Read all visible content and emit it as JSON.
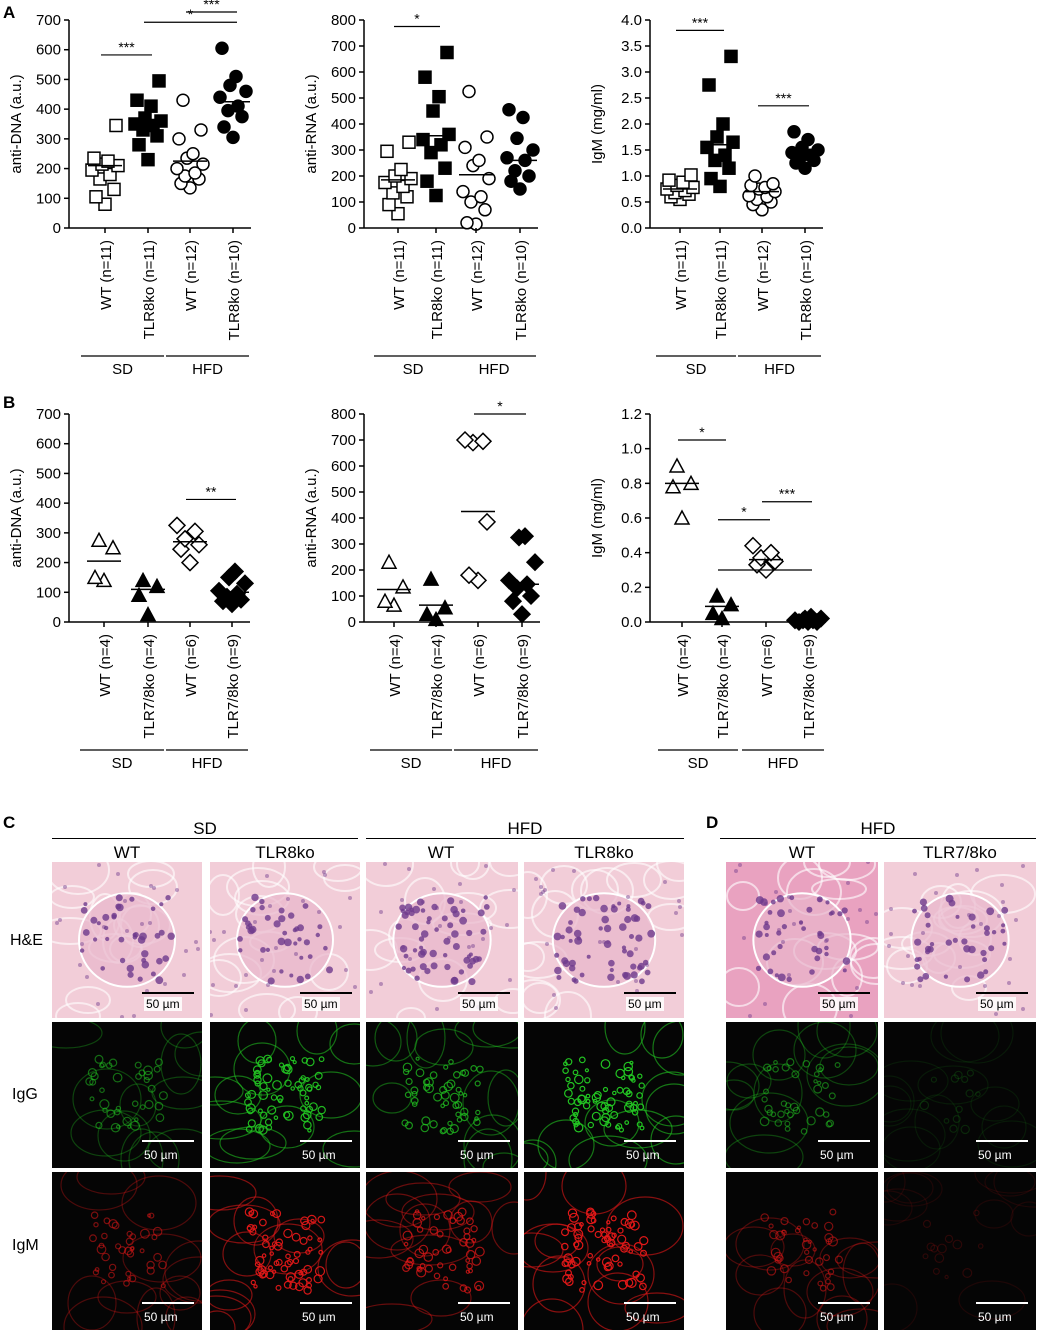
{
  "panels": {
    "A": "A",
    "B": "B",
    "C": "C",
    "D": "D"
  },
  "chart_data": [
    {
      "id": "A1",
      "type": "scatter",
      "ylabel": "anti-DNA (a.u.)",
      "ylim": [
        0,
        700
      ],
      "yticks": [
        0,
        100,
        200,
        300,
        400,
        500,
        600,
        700
      ],
      "groups": [
        {
          "label": "WT (n=11)",
          "diet": "SD",
          "marker": "square-open",
          "mean": 210,
          "values": [
            80,
            105,
            130,
            165,
            180,
            195,
            210,
            215,
            225,
            235,
            345
          ]
        },
        {
          "label": "TLR8ko (n=11)",
          "diet": "SD",
          "marker": "square-filled",
          "mean": 355,
          "values": [
            230,
            280,
            310,
            330,
            345,
            350,
            360,
            370,
            410,
            430,
            495
          ]
        },
        {
          "label": "WT (n=12)",
          "diet": "HFD",
          "marker": "circle-open",
          "mean": 225,
          "values": [
            135,
            150,
            165,
            175,
            185,
            200,
            215,
            235,
            250,
            300,
            330,
            430
          ]
        },
        {
          "label": "TLR8ko (n=10)",
          "diet": "HFD",
          "marker": "circle-filled",
          "mean": 425,
          "values": [
            305,
            340,
            375,
            395,
            410,
            440,
            460,
            480,
            510,
            605
          ]
        }
      ],
      "significance": [
        {
          "from": 0,
          "to": 1,
          "text": "***"
        },
        {
          "from": 1,
          "to": 3,
          "text": "*"
        },
        {
          "from": 2,
          "to": 3,
          "text": "***"
        }
      ],
      "diet_labels": [
        "SD",
        "HFD"
      ]
    },
    {
      "id": "A2",
      "type": "scatter",
      "ylabel": "anti-RNA (a.u.)",
      "ylim": [
        0,
        800
      ],
      "yticks": [
        0,
        100,
        200,
        300,
        400,
        500,
        600,
        700,
        800
      ],
      "groups": [
        {
          "label": "WT (n=11)",
          "diet": "SD",
          "marker": "square-open",
          "mean": 185,
          "values": [
            55,
            90,
            120,
            135,
            160,
            175,
            190,
            200,
            225,
            295,
            330
          ]
        },
        {
          "label": "TLR8ko (n=11)",
          "diet": "SD",
          "marker": "square-filled",
          "mean": 355,
          "values": [
            125,
            180,
            230,
            290,
            320,
            340,
            360,
            450,
            505,
            580,
            675
          ]
        },
        {
          "label": "WT (n=12)",
          "diet": "HFD",
          "marker": "circle-open",
          "mean": 205,
          "values": [
            15,
            20,
            70,
            100,
            120,
            140,
            190,
            240,
            260,
            310,
            350,
            525
          ]
        },
        {
          "label": "TLR8ko (n=10)",
          "diet": "HFD",
          "marker": "circle-filled",
          "mean": 260,
          "values": [
            150,
            180,
            200,
            220,
            260,
            270,
            300,
            345,
            425,
            455
          ]
        }
      ],
      "significance": [
        {
          "from": 0,
          "to": 1,
          "text": "*"
        }
      ],
      "diet_labels": [
        "SD",
        "HFD"
      ]
    },
    {
      "id": "A3",
      "type": "scatter",
      "ylabel": "IgM (mg/ml)",
      "ylim": [
        0,
        4.0
      ],
      "yticks": [
        "0.0",
        "0.5",
        "1.0",
        "1.5",
        "2.0",
        "2.5",
        "3.0",
        "3.5",
        "4.0"
      ],
      "groups": [
        {
          "label": "WT (n=11)",
          "diet": "SD",
          "marker": "square-open",
          "mean": 0.75,
          "values": [
            0.55,
            0.6,
            0.65,
            0.68,
            0.72,
            0.75,
            0.78,
            0.82,
            0.88,
            0.92,
            1.02
          ]
        },
        {
          "label": "TLR8ko (n=11)",
          "diet": "SD",
          "marker": "square-filled",
          "mean": 1.6,
          "values": [
            0.8,
            0.95,
            1.15,
            1.3,
            1.4,
            1.55,
            1.65,
            1.75,
            2.0,
            2.75,
            3.3
          ]
        },
        {
          "label": "WT (n=12)",
          "diet": "HFD",
          "marker": "circle-open",
          "mean": 0.7,
          "values": [
            0.35,
            0.45,
            0.5,
            0.55,
            0.6,
            0.62,
            0.7,
            0.75,
            0.78,
            0.82,
            0.85,
            1.0
          ]
        },
        {
          "label": "TLR8ko (n=10)",
          "diet": "HFD",
          "marker": "circle-filled",
          "mean": 1.42,
          "values": [
            1.15,
            1.25,
            1.3,
            1.35,
            1.4,
            1.45,
            1.5,
            1.55,
            1.7,
            1.85
          ]
        }
      ],
      "significance": [
        {
          "from": 0,
          "to": 1,
          "text": "***"
        },
        {
          "from": 2,
          "to": 3,
          "text": "***"
        }
      ],
      "diet_labels": [
        "SD",
        "HFD"
      ]
    },
    {
      "id": "B1",
      "type": "scatter",
      "ylabel": "anti-DNA (a.u.)",
      "ylim": [
        0,
        700
      ],
      "yticks": [
        0,
        100,
        200,
        300,
        400,
        500,
        600,
        700
      ],
      "groups": [
        {
          "label": "WT (n=4)",
          "diet": "SD",
          "marker": "triangle-open",
          "mean": 205,
          "values": [
            140,
            150,
            250,
            275
          ]
        },
        {
          "label": "TLR7/8ko (n=4)",
          "diet": "SD",
          "marker": "triangle-filled",
          "mean": 110,
          "values": [
            25,
            90,
            120,
            140
          ]
        },
        {
          "label": "WT (n=6)",
          "diet": "HFD",
          "marker": "diamond-open",
          "mean": 270,
          "values": [
            200,
            245,
            260,
            280,
            305,
            325
          ]
        },
        {
          "label": "TLR7/8ko (n=9)",
          "diet": "HFD",
          "marker": "diamond-filled",
          "mean": 100,
          "values": [
            60,
            70,
            75,
            85,
            95,
            105,
            130,
            150,
            170
          ]
        }
      ],
      "significance": [
        {
          "from": 2,
          "to": 3,
          "text": "**"
        }
      ],
      "diet_labels": [
        "SD",
        "HFD"
      ]
    },
    {
      "id": "B2",
      "type": "scatter",
      "ylabel": "anti-RNA (a.u.)",
      "ylim": [
        0,
        800
      ],
      "yticks": [
        0,
        100,
        200,
        300,
        400,
        500,
        600,
        700,
        800
      ],
      "groups": [
        {
          "label": "WT (n=4)",
          "diet": "SD",
          "marker": "triangle-open",
          "mean": 125,
          "values": [
            65,
            80,
            135,
            230
          ]
        },
        {
          "label": "TLR7/8ko (n=4)",
          "diet": "SD",
          "marker": "triangle-filled",
          "mean": 65,
          "values": [
            10,
            30,
            55,
            165
          ]
        },
        {
          "label": "WT (n=6)",
          "diet": "HFD",
          "marker": "diamond-open",
          "mean": 425,
          "values": [
            160,
            180,
            385,
            690,
            695,
            700
          ]
        },
        {
          "label": "TLR7/8ko (n=9)",
          "diet": "HFD",
          "marker": "diamond-filled",
          "mean": 145,
          "values": [
            30,
            80,
            100,
            130,
            145,
            160,
            230,
            325,
            330
          ]
        }
      ],
      "significance": [
        {
          "from": 2,
          "to": 3,
          "text": "*"
        }
      ],
      "diet_labels": [
        "SD",
        "HFD"
      ]
    },
    {
      "id": "B3",
      "type": "scatter",
      "ylabel": "IgM (mg/ml)",
      "ylim": [
        0,
        1.2
      ],
      "yticks": [
        "0.0",
        "0.2",
        "0.4",
        "0.6",
        "0.8",
        "1.0",
        "1.2"
      ],
      "groups": [
        {
          "label": "WT (n=4)",
          "diet": "SD",
          "marker": "triangle-open",
          "mean": 0.8,
          "values": [
            0.6,
            0.78,
            0.8,
            0.9
          ]
        },
        {
          "label": "TLR7/8ko (n=4)",
          "diet": "SD",
          "marker": "triangle-filled",
          "mean": 0.09,
          "values": [
            0.02,
            0.05,
            0.1,
            0.15
          ]
        },
        {
          "label": "WT (n=6)",
          "diet": "HFD",
          "marker": "diamond-open",
          "mean": 0.36,
          "values": [
            0.3,
            0.33,
            0.35,
            0.37,
            0.4,
            0.44
          ]
        },
        {
          "label": "TLR7/8ko (n=9)",
          "diet": "HFD",
          "marker": "diamond-filled",
          "mean": 0.01,
          "values": [
            0.0,
            0.0,
            0.0,
            0.01,
            0.01,
            0.01,
            0.02,
            0.02,
            0.03
          ]
        }
      ],
      "significance": [
        {
          "from": 0,
          "to": 1,
          "text": "*"
        },
        {
          "from": 1,
          "to": 2,
          "text": "*"
        },
        {
          "from": 2,
          "to": 3,
          "text": "***"
        },
        {
          "from": 1,
          "to": 3,
          "text": "*"
        }
      ],
      "diet_labels": [
        "SD",
        "HFD"
      ]
    }
  ],
  "histology": {
    "C": {
      "diet_headers": [
        "SD",
        "HFD"
      ],
      "col_headers": [
        "WT",
        "TLR8ko",
        "WT",
        "TLR8ko"
      ]
    },
    "D": {
      "diet_header": "HFD",
      "col_headers": [
        "WT",
        "TLR7/8ko"
      ]
    },
    "row_labels": [
      "H&E",
      "IgG",
      "IgM"
    ],
    "scale_bar": "50 µm",
    "colors": {
      "he_bg": "#f2cdd8",
      "he_nuclei": "#6e3a8c",
      "he_d_bg": "#e9a2c0",
      "igg": "#22c322",
      "igm": "#e01818",
      "dark": "#050505"
    }
  }
}
